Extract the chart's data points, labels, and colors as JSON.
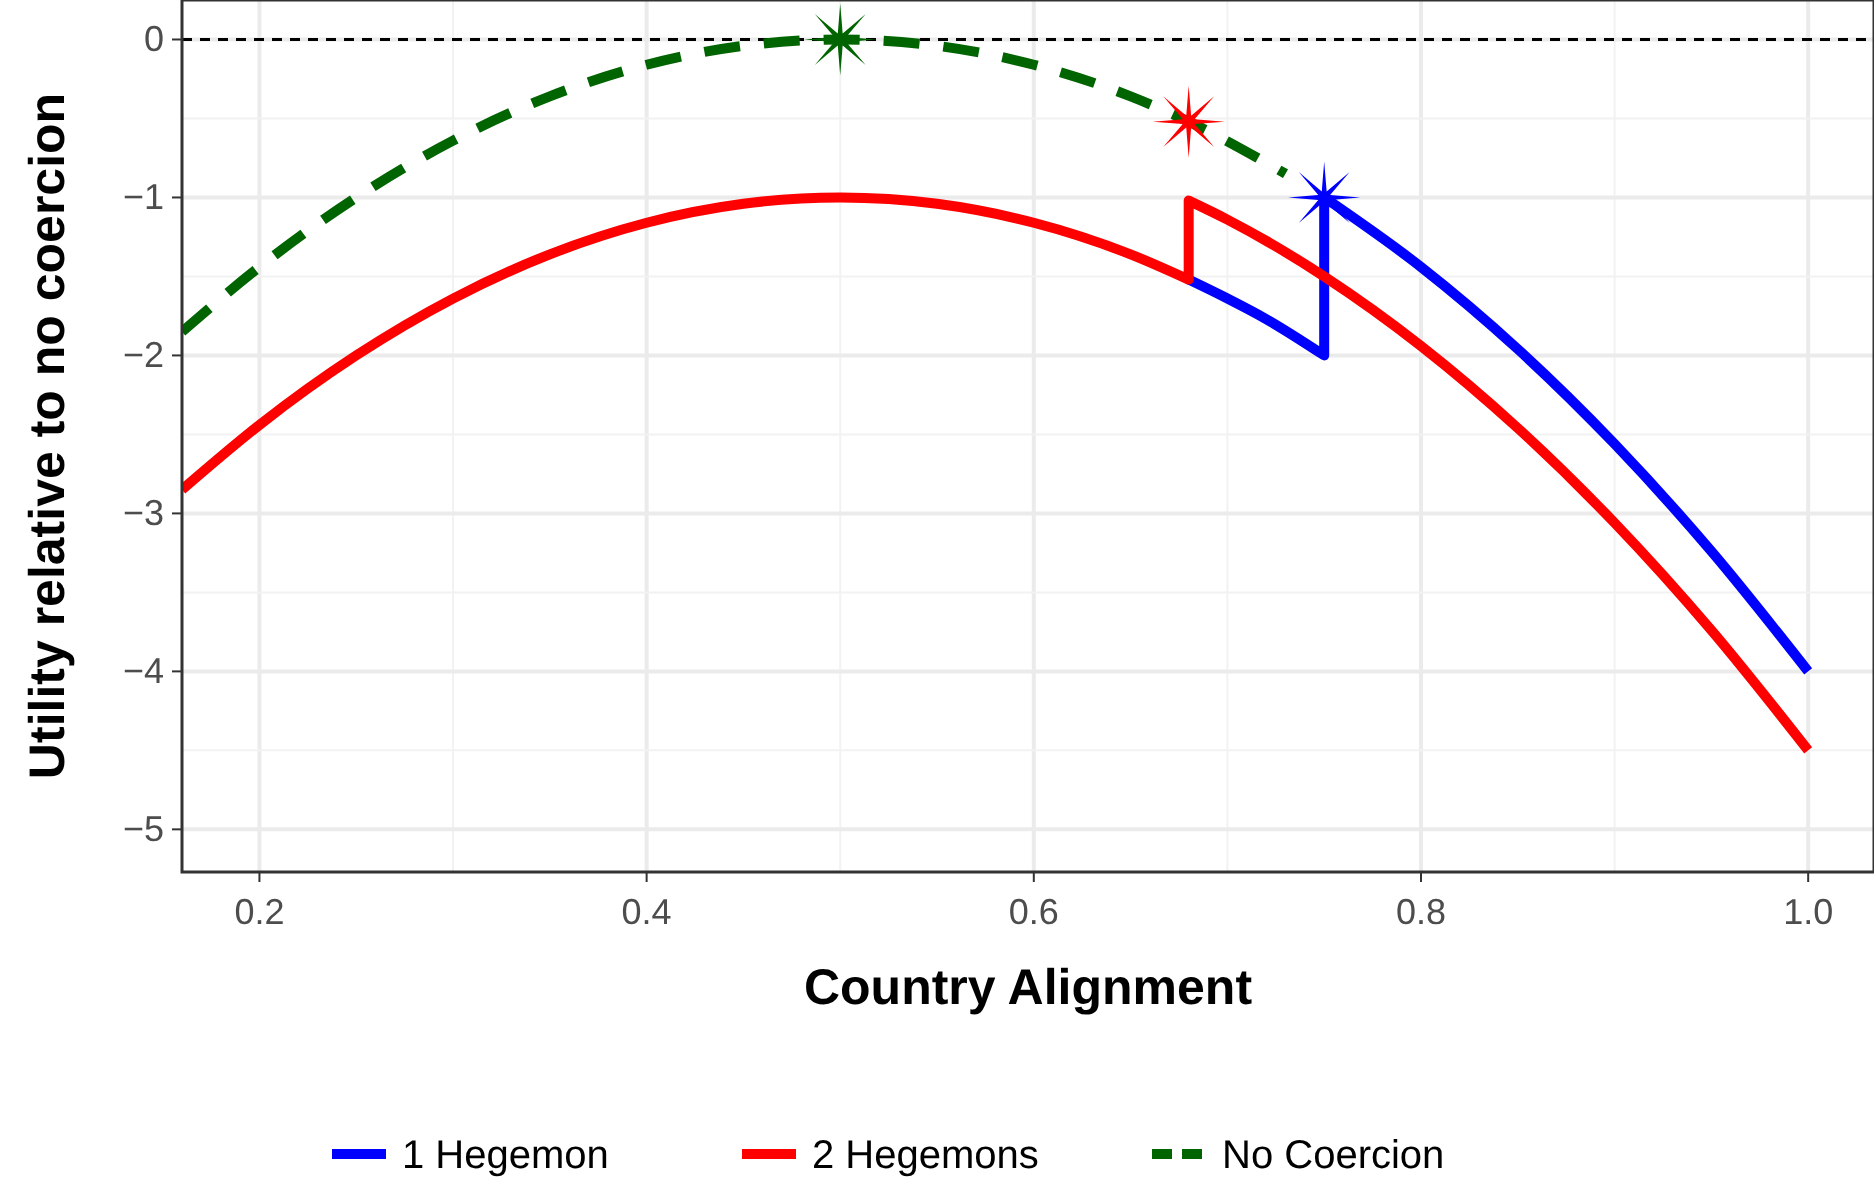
{
  "chart_data": {
    "type": "line",
    "xlabel": "Country Alignment",
    "ylabel": "Utility relative to no coercion",
    "xlim": [
      0.16,
      1.034
    ],
    "ylim": [
      -5.27,
      0.25
    ],
    "xticks": [
      0.2,
      0.4,
      0.6,
      0.8,
      {
        "value": 1,
        "label": "1.0"
      }
    ],
    "yticks": [
      -5,
      -4,
      -3,
      -2,
      -1,
      0
    ],
    "grid": true,
    "legend": "bottom",
    "ref_lines": [
      {
        "axis": "y",
        "value": 0,
        "color": "#000000",
        "line_style": "dashed"
      }
    ],
    "series": [
      {
        "name": "1 Hegemon",
        "color": "#0000ff",
        "line_style": "solid",
        "x": [
          0.68,
          0.7,
          0.72,
          0.75,
          0.75,
          0.8,
          0.85,
          0.9,
          0.95,
          1.0
        ],
        "values": [
          -1.52,
          -1.64,
          -1.77,
          -2.0,
          -1.0,
          -1.44,
          -1.96,
          -2.56,
          -3.24,
          -4.0
        ]
      },
      {
        "name": "2 Hegemons",
        "color": "#ff0000",
        "line_style": "solid",
        "x": [
          0.16,
          0.2,
          0.25,
          0.3,
          0.35,
          0.4,
          0.45,
          0.5,
          0.55,
          0.6,
          0.65,
          0.68,
          0.68,
          0.7,
          0.75,
          0.8,
          0.85,
          0.9,
          0.95,
          1.0
        ],
        "values": [
          -2.85,
          -2.44,
          -2.0,
          -1.64,
          -1.36,
          -1.16,
          -1.04,
          -1,
          -1.04,
          -1.16,
          -1.36,
          -1.52,
          -1.02,
          -1.14,
          -1.5,
          -1.94,
          -2.46,
          -3.06,
          -3.74,
          -4.5
        ]
      },
      {
        "name": "No Coercion",
        "color": "#006400",
        "line_style": "dashed",
        "x": [
          0.16,
          0.2,
          0.25,
          0.3,
          0.35,
          0.4,
          0.45,
          0.5,
          0.55,
          0.6,
          0.65,
          0.68,
          0.73
        ],
        "values": [
          -1.85,
          -1.44,
          -1.0,
          -0.64,
          -0.36,
          -0.16,
          -0.04,
          0,
          -0.04,
          -0.16,
          -0.36,
          -0.52,
          -0.85
        ]
      },
      {
        "type": "scatter",
        "marker": "star",
        "color": "#006400",
        "x": [
          0.5
        ],
        "values": [
          0
        ]
      },
      {
        "type": "scatter",
        "marker": "star",
        "color": "#ff0000",
        "x": [
          0.68
        ],
        "values": [
          -0.52
        ]
      },
      {
        "type": "scatter",
        "marker": "star",
        "color": "#0000ff",
        "x": [
          0.75
        ],
        "values": [
          -1.0
        ]
      }
    ]
  }
}
